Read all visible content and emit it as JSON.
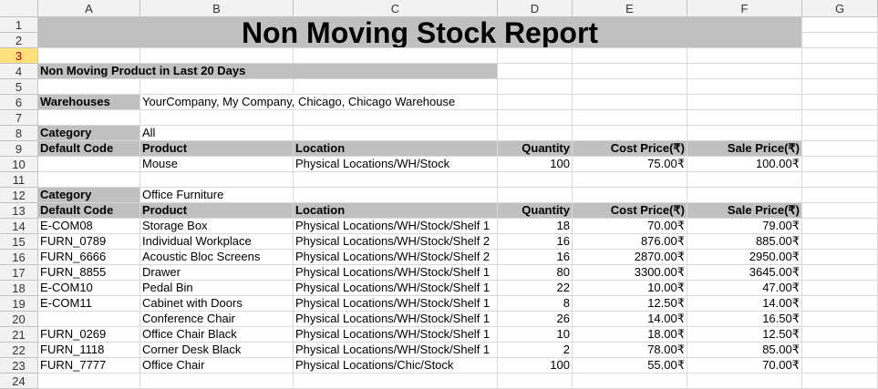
{
  "columns": [
    "A",
    "B",
    "C",
    "D",
    "E",
    "F",
    "G"
  ],
  "row_numbers": [
    "1",
    "2",
    "3",
    "4",
    "5",
    "6",
    "7",
    "8",
    "9",
    "10",
    "11",
    "12",
    "13",
    "14",
    "15",
    "16",
    "17",
    "18",
    "19",
    "20",
    "21",
    "22",
    "23",
    "24"
  ],
  "selected_row": "3",
  "report": {
    "title": "Non Moving Stock Report",
    "subtitle": "Non Moving Product in Last 20 Days",
    "warehouses_label": "Warehouses",
    "warehouses_value": "YourCompany, My Company, Chicago, Chicago Warehouse"
  },
  "headers": {
    "category": "Category",
    "default_code": "Default Code",
    "product": "Product",
    "location": "Location",
    "quantity": "Quantity",
    "cost_price": "Cost Price(₹)",
    "sale_price": "Sale Price(₹)"
  },
  "sections": [
    {
      "category": "All",
      "rows": [
        {
          "code": "",
          "product": "Mouse",
          "location": "Physical Locations/WH/Stock",
          "qty": "100",
          "cost": "75.00₹",
          "sale": "100.00₹"
        }
      ]
    },
    {
      "category": "Office Furniture",
      "rows": [
        {
          "code": "E-COM08",
          "product": "Storage Box",
          "location": "Physical Locations/WH/Stock/Shelf 1",
          "qty": "18",
          "cost": "70.00₹",
          "sale": "79.00₹"
        },
        {
          "code": "FURN_0789",
          "product": "Individual Workplace",
          "location": "Physical Locations/WH/Stock/Shelf 2",
          "qty": "16",
          "cost": "876.00₹",
          "sale": "885.00₹"
        },
        {
          "code": "FURN_6666",
          "product": "Acoustic Bloc Screens",
          "location": "Physical Locations/WH/Stock/Shelf 2",
          "qty": "16",
          "cost": "2870.00₹",
          "sale": "2950.00₹"
        },
        {
          "code": "FURN_8855",
          "product": "Drawer",
          "location": "Physical Locations/WH/Stock/Shelf 1",
          "qty": "80",
          "cost": "3300.00₹",
          "sale": "3645.00₹"
        },
        {
          "code": "E-COM10",
          "product": "Pedal Bin",
          "location": "Physical Locations/WH/Stock/Shelf 1",
          "qty": "22",
          "cost": "10.00₹",
          "sale": "47.00₹"
        },
        {
          "code": "E-COM11",
          "product": "Cabinet with Doors",
          "location": "Physical Locations/WH/Stock/Shelf 1",
          "qty": "8",
          "cost": "12.50₹",
          "sale": "14.00₹"
        },
        {
          "code": "",
          "product": "Conference Chair",
          "location": "Physical Locations/WH/Stock/Shelf 1",
          "qty": "26",
          "cost": "14.00₹",
          "sale": "16.50₹"
        },
        {
          "code": "FURN_0269",
          "product": "Office Chair Black",
          "location": "Physical Locations/WH/Stock/Shelf 1",
          "qty": "10",
          "cost": "18.00₹",
          "sale": "12.50₹"
        },
        {
          "code": "FURN_1118",
          "product": "Corner Desk Black",
          "location": "Physical Locations/WH/Stock/Shelf 1",
          "qty": "2",
          "cost": "78.00₹",
          "sale": "85.00₹"
        },
        {
          "code": "FURN_7777",
          "product": "Office Chair",
          "location": "Physical Locations/Chic/Stock",
          "qty": "100",
          "cost": "55.00₹",
          "sale": "70.00₹"
        }
      ]
    }
  ]
}
